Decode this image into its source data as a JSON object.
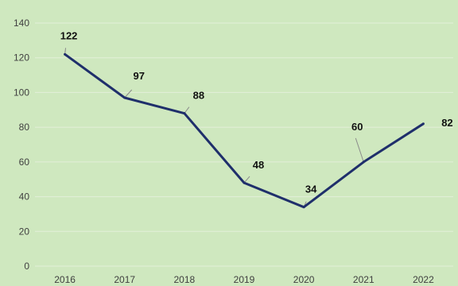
{
  "chart_data": {
    "type": "line",
    "title": "",
    "xlabel": "",
    "ylabel": "",
    "x": [
      "2016",
      "2017",
      "2018",
      "2019",
      "2020",
      "2021",
      "2022"
    ],
    "series": [
      {
        "values": [
          122,
          97,
          88,
          48,
          34,
          60,
          82
        ]
      }
    ],
    "ylim": [
      0,
      140
    ],
    "yticks": [
      0,
      20,
      40,
      60,
      80,
      100,
      120,
      140
    ],
    "grid": true,
    "legend": "none",
    "data_labels": true
  },
  "colors": {
    "background": "#cfe8bf",
    "line": "#1f2f6b",
    "grid": "#e3efd9",
    "leader": "#8a8a8a"
  }
}
